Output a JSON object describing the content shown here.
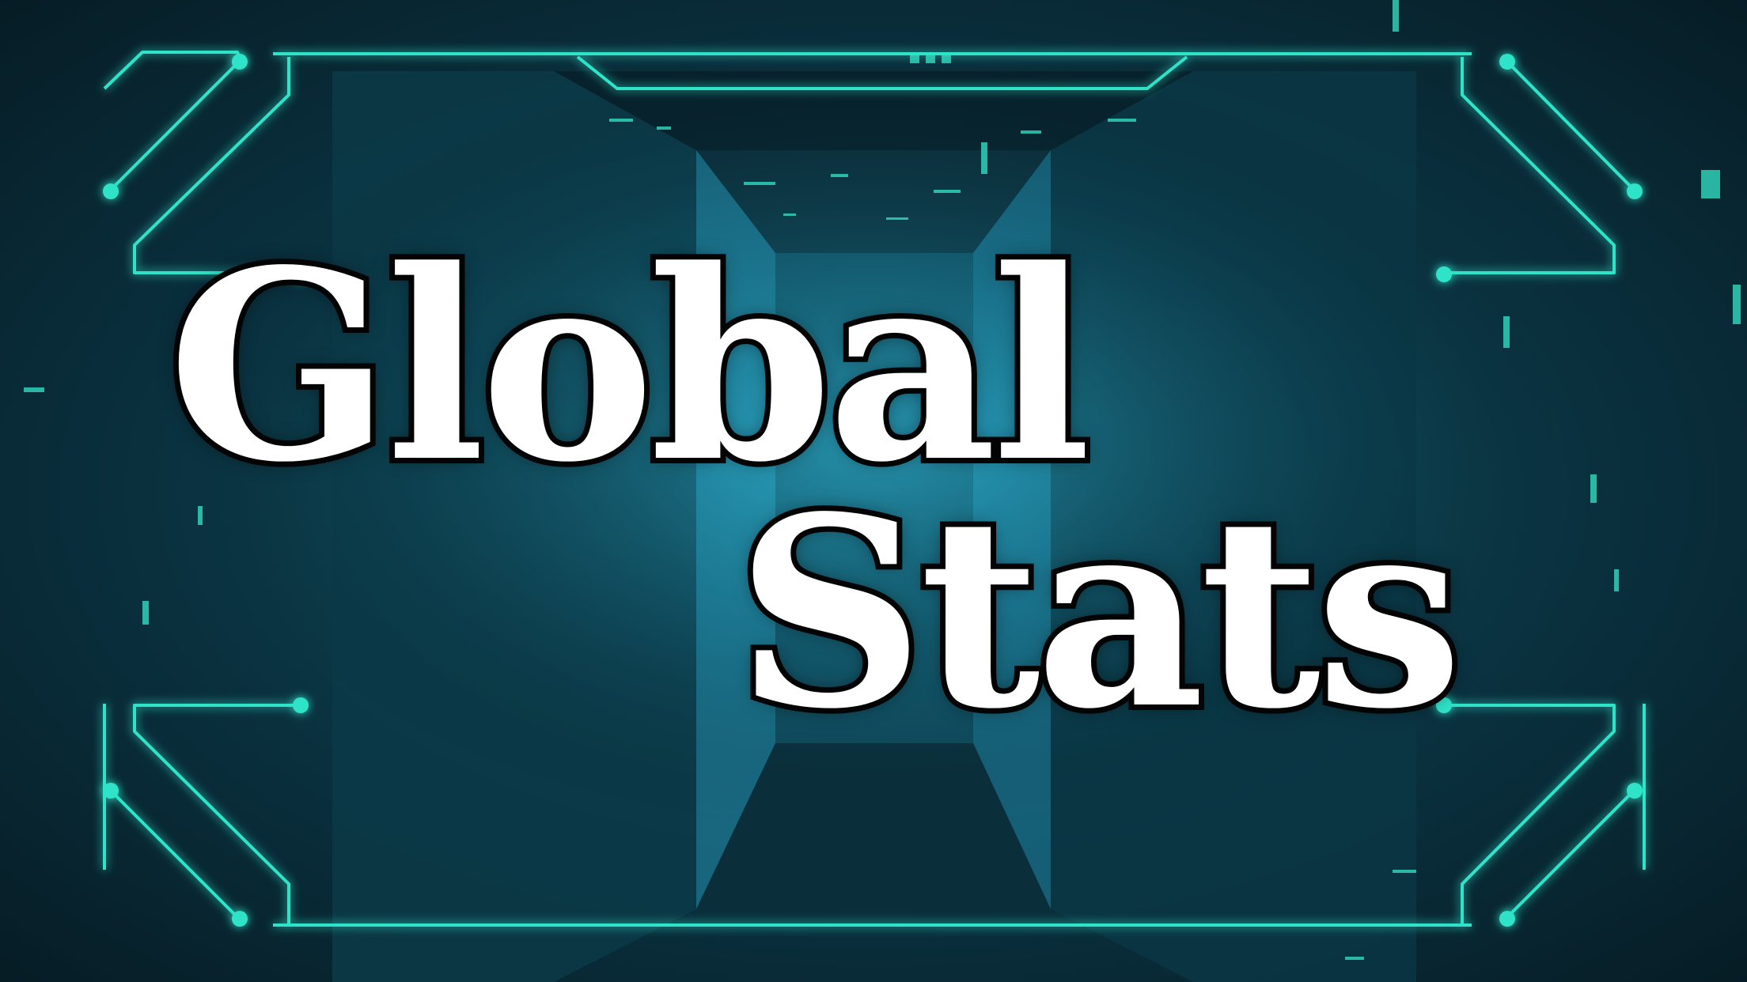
{
  "title": {
    "line1": "Global",
    "line2": "Stats"
  },
  "colors": {
    "neon_accent": "#2fe3c8",
    "title_fill": "#ffffff",
    "title_outline": "#050505",
    "background_dark": "#061c25",
    "background_glow": "#1c6f86"
  }
}
